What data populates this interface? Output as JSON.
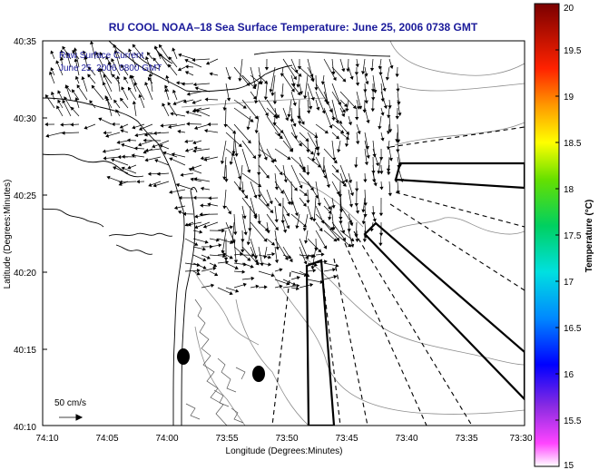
{
  "title": "RU COOL  NOAA–18  Sea Surface Temperature:  June 25, 2006 0738 GMT",
  "legend": {
    "line1": "Raw Surface Current",
    "line2": "June 25, 2006 0800 GMT"
  },
  "scale_label": "50 cm/s",
  "x_axis": {
    "label": "Longitude (Degrees:Minutes)",
    "ticks": [
      "74:10",
      "74:05",
      "74:00",
      "73:55",
      "73:50",
      "73:45",
      "73:40",
      "73:35",
      "73:30"
    ]
  },
  "y_axis": {
    "label": "Latitude (Degrees:Minutes)",
    "ticks": [
      "40:35",
      "40:30",
      "40:25",
      "40:20",
      "40:15",
      "40:10"
    ]
  },
  "colorbar": {
    "label": "Temperature (°C)",
    "ticks": [
      "20",
      "19.5",
      "19",
      "18.5",
      "18",
      "17.5",
      "17",
      "16.5",
      "16",
      "15.5",
      "15"
    ],
    "min": 15,
    "max": 20
  },
  "colors": {
    "title": "#1a1a9a",
    "coast": "#000000",
    "bathymetry": "#8c8c8c",
    "arrows": "#000000"
  }
}
